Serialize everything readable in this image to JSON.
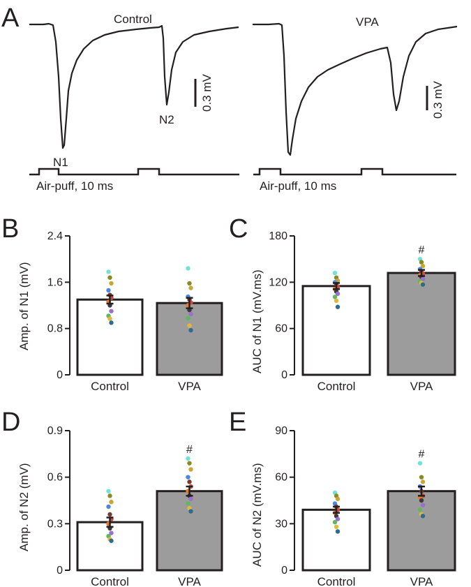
{
  "panel_a": {
    "letter": "A",
    "traces": [
      {
        "title": "Control",
        "n1_label": "N1",
        "n2_label": "N2",
        "scale_label": "0.3 mV",
        "stim_label": "Air-puff, 10 ms"
      },
      {
        "title": "VPA",
        "scale_label": "0.3 mV",
        "stim_label": "Air-puff, 10 ms"
      }
    ]
  },
  "chart_data": [
    {
      "panel": "B",
      "type": "bar",
      "categories": [
        "Control",
        "VPA"
      ],
      "values": [
        1.3,
        1.24
      ],
      "errors": [
        0.07,
        0.09
      ],
      "ylabel": "Amp. of N1 (mV)",
      "ylim": [
        0,
        2.4
      ],
      "yticks": [
        "0",
        "0.8",
        "1.6",
        "2.4"
      ],
      "ytick_values": [
        0,
        0.8,
        1.6,
        2.4
      ],
      "bar_colors": [
        "#ffffff",
        "#9c9c9c"
      ],
      "significance": [
        "",
        ""
      ],
      "points": [
        [
          1.78,
          1.68,
          1.58,
          1.46,
          1.38,
          1.33,
          1.26,
          1.2,
          1.1,
          1.02,
          0.97,
          0.9
        ],
        [
          1.84,
          1.58,
          1.5,
          1.35,
          1.3,
          1.25,
          1.2,
          1.12,
          1.05,
          0.98,
          0.85,
          0.77
        ]
      ]
    },
    {
      "panel": "C",
      "type": "bar",
      "categories": [
        "Control",
        "VPA"
      ],
      "values": [
        115,
        132
      ],
      "errors": [
        4,
        4
      ],
      "ylabel": "AUC of N1 (mV.ms)",
      "ylim": [
        0,
        180
      ],
      "yticks": [
        "0",
        "60",
        "120",
        "180"
      ],
      "ytick_values": [
        0,
        60,
        120,
        180
      ],
      "bar_colors": [
        "#ffffff",
        "#9c9c9c"
      ],
      "significance": [
        "",
        "#"
      ],
      "points": [
        [
          132,
          126,
          122,
          120,
          117,
          114,
          111,
          108,
          105,
          101,
          96,
          88
        ],
        [
          150,
          146,
          141,
          137,
          134,
          131,
          129,
          127,
          124,
          121,
          119,
          117
        ]
      ]
    },
    {
      "panel": "D",
      "type": "bar",
      "categories": [
        "Control",
        "VPA"
      ],
      "values": [
        0.31,
        0.51
      ],
      "errors": [
        0.03,
        0.03
      ],
      "ylabel": "Amp. of N2 (mV)",
      "ylim": [
        0,
        0.9
      ],
      "yticks": [
        "0",
        "0.3",
        "0.6",
        "0.9"
      ],
      "ytick_values": [
        0,
        0.3,
        0.6,
        0.9
      ],
      "bar_colors": [
        "#ffffff",
        "#9c9c9c"
      ],
      "significance": [
        "",
        "#"
      ],
      "points": [
        [
          0.51,
          0.48,
          0.44,
          0.41,
          0.36,
          0.33,
          0.3,
          0.27,
          0.24,
          0.22,
          0.2,
          0.19
        ],
        [
          0.72,
          0.69,
          0.65,
          0.6,
          0.57,
          0.54,
          0.51,
          0.48,
          0.46,
          0.43,
          0.4,
          0.38
        ]
      ]
    },
    {
      "panel": "E",
      "type": "bar",
      "categories": [
        "Control",
        "VPA"
      ],
      "values": [
        39,
        51
      ],
      "errors": [
        2,
        3
      ],
      "ylabel": "AUC of N2 (mV.ms)",
      "ylim": [
        0,
        90
      ],
      "yticks": [
        "0",
        "30",
        "60",
        "90"
      ],
      "ytick_values": [
        0,
        30,
        60,
        90
      ],
      "bar_colors": [
        "#ffffff",
        "#9c9c9c"
      ],
      "significance": [
        "",
        "#"
      ],
      "points": [
        [
          50,
          48,
          46,
          43,
          41,
          39,
          37,
          35,
          33,
          31,
          28,
          25
        ],
        [
          69,
          60,
          57,
          54,
          51,
          48,
          47,
          45,
          42,
          39,
          36,
          35
        ]
      ]
    }
  ],
  "dot_colors": [
    "#6ee3d3",
    "#8a8a22",
    "#c8a632",
    "#4a86e8",
    "#7a3b2e",
    "#d24a3f",
    "#e87a2a",
    "#3a3a3a",
    "#9b6fcf",
    "#5fb85f",
    "#e0b93a",
    "#2f6b8f"
  ]
}
